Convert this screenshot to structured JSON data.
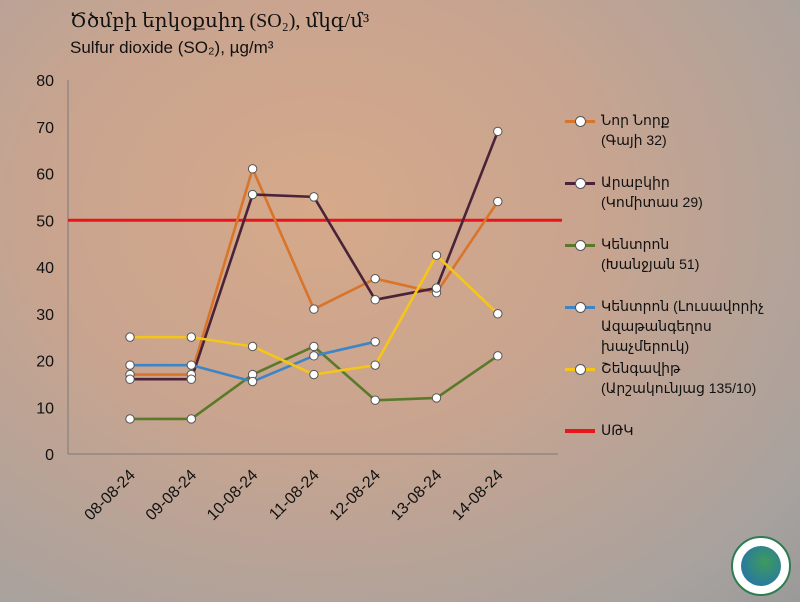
{
  "header": {
    "title": "Ծծմբի երկօքսիդ (SO₂), մկգ/մ³",
    "subtitle": "Sulfur dioxide (SO₂), µg/m³"
  },
  "colors": {
    "nor_nork": "#d9742b",
    "arabkir": "#4a2338",
    "kentron_khanjyan": "#5a7a2a",
    "kentron_lusavorich": "#3d85c6",
    "shengavit": "#f5c518",
    "mtk": "#e8161b"
  },
  "chart_data": {
    "type": "line",
    "title": "Ծծմբի երկօքսիդ (SO₂), մկգ/մ³",
    "subtitle": "Sulfur dioxide (SO₂), µg/m³",
    "categories": [
      "08-08-24",
      "09-08-24",
      "10-08-24",
      "11-08-24",
      "12-08-24",
      "13-08-24",
      "14-08-24"
    ],
    "ylim": [
      0,
      80
    ],
    "yticks": [
      0,
      10,
      20,
      30,
      40,
      50,
      60,
      70,
      80
    ],
    "grid": false,
    "legend_position": "right",
    "threshold": {
      "name": "ՍԹԿ",
      "value": 50
    },
    "series": [
      {
        "name": "Նոր Նորք\n(Գայի 32)",
        "color": "#d9742b",
        "values": [
          17,
          17,
          61,
          31,
          37.5,
          34.5,
          54
        ]
      },
      {
        "name": "Արաբկիր\n(Կոմիտաս 29)",
        "color": "#4a2338",
        "values": [
          16,
          16,
          55.5,
          55,
          33,
          35.5,
          69
        ]
      },
      {
        "name": "Կենտրոն\n(Խանջյան 51)",
        "color": "#5a7a2a",
        "values": [
          7.5,
          7.5,
          17,
          23,
          11.5,
          12,
          21
        ]
      },
      {
        "name": "Կենտրոն (Լուսավորիչ\nԱզաթանգեղոս խաչմերուկ)",
        "color": "#3d85c6",
        "values": [
          19,
          19,
          15.5,
          21,
          24,
          null,
          null
        ]
      },
      {
        "name": "Շենգավիթ\n(Արշակունյաց 135/10)",
        "color": "#f5c518",
        "values": [
          25,
          25,
          23,
          17,
          19,
          42.5,
          30
        ]
      }
    ]
  }
}
